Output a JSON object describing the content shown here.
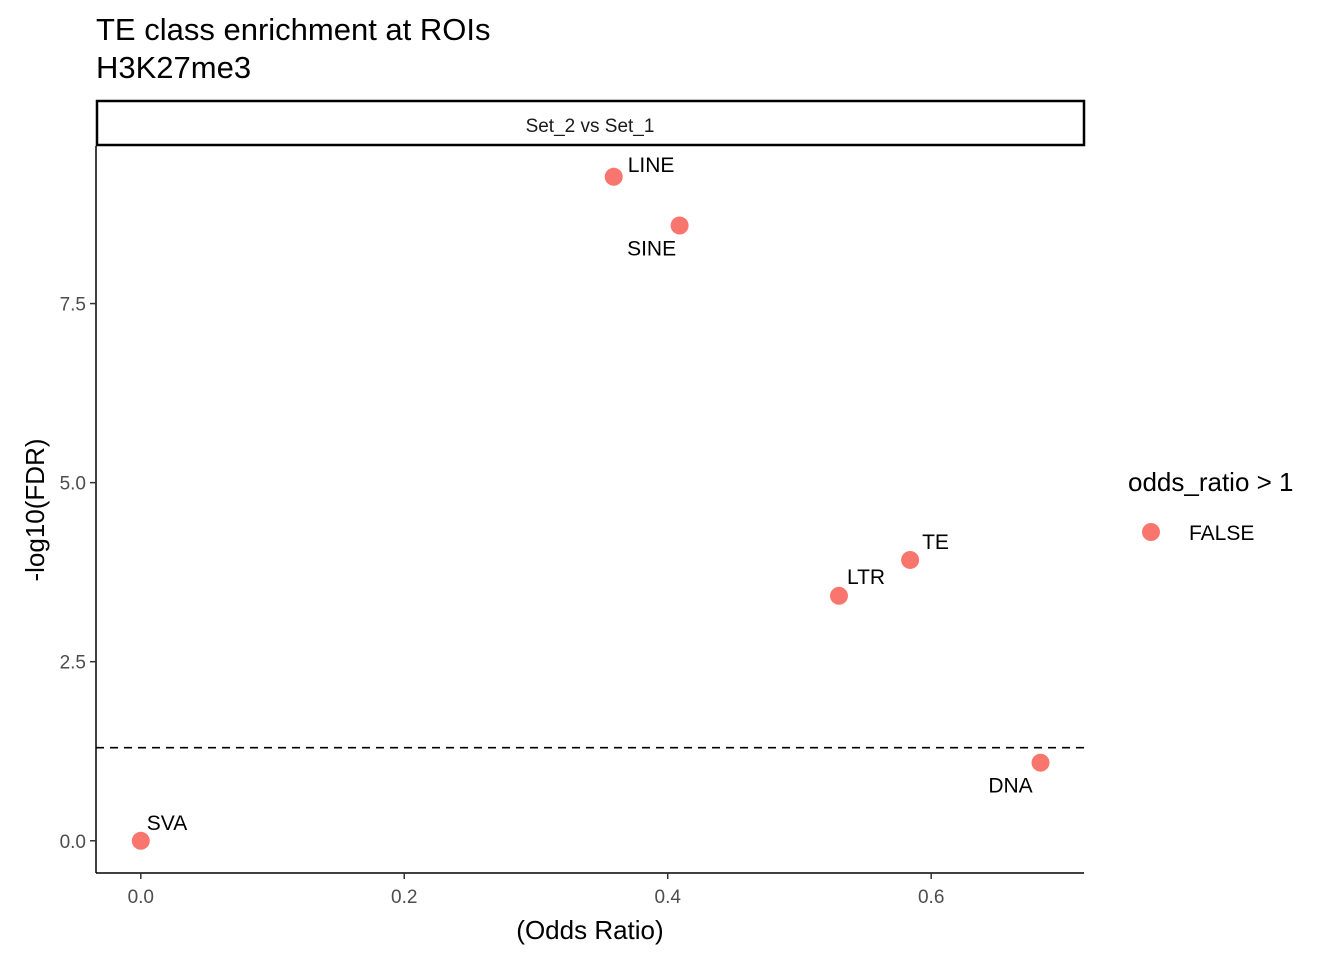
{
  "chart_data": {
    "type": "scatter",
    "title": "TE class enrichment at ROIs",
    "subtitle": "H3K27me3",
    "facet": "Set_2 vs Set_1",
    "xlabel": "(Odds Ratio)",
    "ylabel": "-log10(FDR)",
    "xlim": [
      -0.034,
      0.716
    ],
    "ylim": [
      -0.45,
      9.7
    ],
    "x_ticks": [
      0.0,
      0.2,
      0.4,
      0.6
    ],
    "x_tick_labels": [
      "0.0",
      "0.2",
      "0.4",
      "0.6"
    ],
    "y_ticks": [
      0.0,
      2.5,
      5.0,
      7.5
    ],
    "y_tick_labels": [
      "0.0",
      "2.5",
      "5.0",
      "7.5"
    ],
    "threshold_line": {
      "y": 1.3,
      "style": "dashed"
    },
    "point_color": "#F8766D",
    "points": [
      {
        "label": "LINE",
        "x": 0.359,
        "y": 9.27
      },
      {
        "label": "SINE",
        "x": 0.409,
        "y": 8.59
      },
      {
        "label": "TE",
        "x": 0.584,
        "y": 3.92
      },
      {
        "label": "LTR",
        "x": 0.53,
        "y": 3.42
      },
      {
        "label": "DNA",
        "x": 0.683,
        "y": 1.09
      },
      {
        "label": "SVA",
        "x": 0.0,
        "y": 0.0
      }
    ],
    "legend": {
      "title": "odds_ratio > 1",
      "entries": [
        {
          "label": "FALSE",
          "color": "#F8766D"
        }
      ],
      "position": "right"
    }
  }
}
